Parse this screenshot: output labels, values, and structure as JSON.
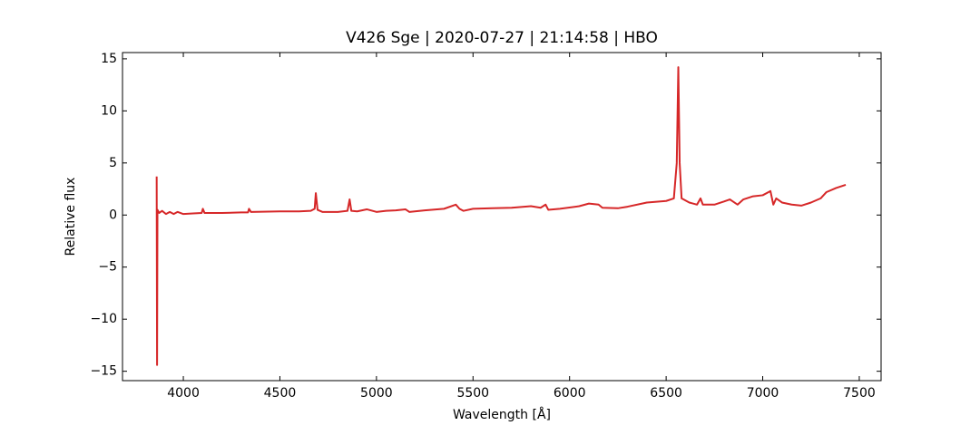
{
  "chart_data": {
    "type": "line",
    "title": "V426 Sge | 2020-07-27 | 21:14:58 | HBO",
    "x_label": "Wavelength [Å]",
    "y_label": "Relative flux",
    "color": "#d62728",
    "xlim": [
      3685,
      7613
    ],
    "ylim": [
      -15.9,
      15.6
    ],
    "xticks": [
      4000,
      4500,
      5000,
      5500,
      6000,
      6500,
      7000,
      7500
    ],
    "yticks": [
      {
        "value": -15,
        "label": "−15"
      },
      {
        "value": -10,
        "label": "−10"
      },
      {
        "value": -5,
        "label": "−5"
      },
      0,
      5,
      10,
      15
    ],
    "x": [
      3862,
      3864,
      3866,
      3875,
      3890,
      3910,
      3930,
      3950,
      3970,
      4000,
      4050,
      4095,
      4101,
      4110,
      4200,
      4300,
      4335,
      4340,
      4350,
      4500,
      4600,
      4660,
      4680,
      4686,
      4695,
      4720,
      4800,
      4850,
      4861,
      4870,
      4900,
      4950,
      5000,
      5050,
      5100,
      5150,
      5170,
      5250,
      5350,
      5411,
      5430,
      5450,
      5500,
      5600,
      5700,
      5800,
      5850,
      5876,
      5890,
      5950,
      6050,
      6100,
      6150,
      6170,
      6250,
      6300,
      6400,
      6500,
      6540,
      6555,
      6563,
      6570,
      6580,
      6620,
      6660,
      6678,
      6690,
      6750,
      6800,
      6830,
      6870,
      6900,
      6950,
      7000,
      7040,
      7055,
      7070,
      7100,
      7150,
      7200,
      7250,
      7300,
      7330,
      7380,
      7430
    ],
    "values": [
      3.7,
      -14.4,
      0.5,
      0.2,
      0.4,
      0.1,
      0.3,
      0.1,
      0.3,
      0.1,
      0.15,
      0.2,
      0.6,
      0.2,
      0.2,
      0.25,
      0.25,
      0.6,
      0.3,
      0.35,
      0.35,
      0.4,
      0.6,
      2.1,
      0.5,
      0.3,
      0.3,
      0.4,
      1.5,
      0.4,
      0.35,
      0.55,
      0.3,
      0.4,
      0.45,
      0.55,
      0.3,
      0.45,
      0.6,
      1.0,
      0.6,
      0.4,
      0.6,
      0.65,
      0.7,
      0.85,
      0.7,
      1.0,
      0.5,
      0.6,
      0.85,
      1.1,
      1.0,
      0.7,
      0.65,
      0.8,
      1.2,
      1.35,
      1.6,
      5.0,
      14.2,
      5.0,
      1.6,
      1.2,
      1.0,
      1.6,
      1.0,
      1.0,
      1.3,
      1.5,
      1.0,
      1.5,
      1.8,
      1.9,
      2.3,
      1.0,
      1.6,
      1.2,
      1.0,
      0.9,
      1.2,
      1.6,
      2.2,
      2.6,
      2.9
    ]
  }
}
